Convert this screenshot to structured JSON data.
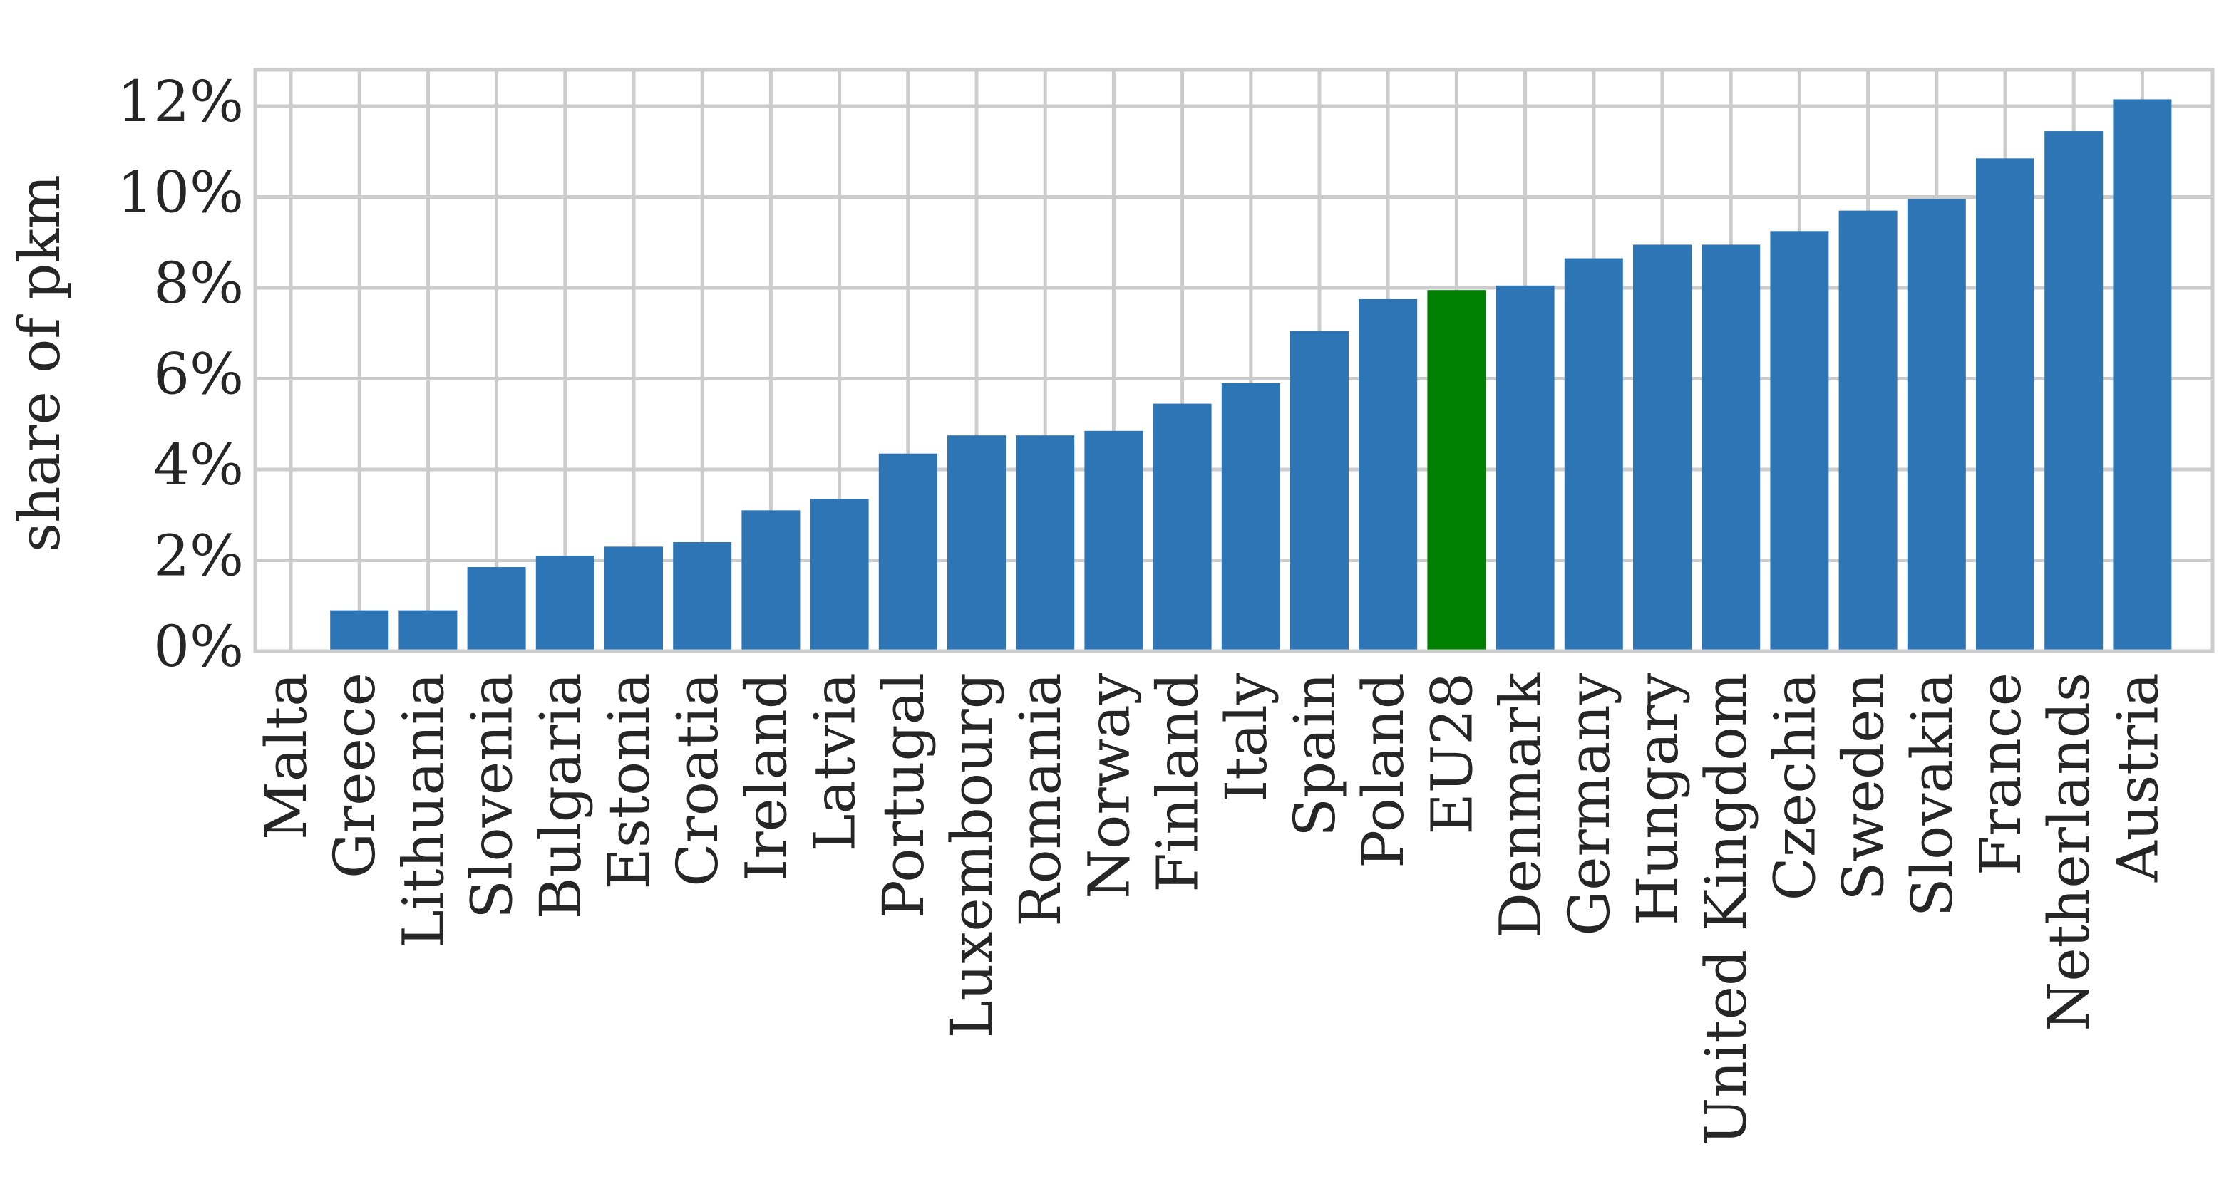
{
  "chart_data": {
    "type": "bar",
    "y_label": "share of pkm",
    "categories": [
      "Malta",
      "Greece",
      "Lithuania",
      "Slovenia",
      "Bulgaria",
      "Estonia",
      "Croatia",
      "Ireland",
      "Latvia",
      "Portugal",
      "Luxembourg",
      "Romania",
      "Norway",
      "Finland",
      "Italy",
      "Spain",
      "Poland",
      "EU28",
      "Denmark",
      "Germany",
      "Hungary",
      "United Kingdom",
      "Czechia",
      "Sweden",
      "Slovakia",
      "France",
      "Netherlands",
      "Austria"
    ],
    "values": [
      0,
      0.9,
      0.9,
      1.85,
      2.1,
      2.3,
      2.4,
      3.1,
      3.35,
      4.35,
      4.75,
      4.75,
      4.85,
      5.45,
      5.9,
      7.05,
      7.75,
      7.95,
      8.05,
      8.65,
      8.95,
      8.95,
      9.25,
      9.7,
      9.95,
      10.85,
      11.45,
      12.15
    ],
    "colors": [
      "#2e75b6",
      "#2e75b6",
      "#2e75b6",
      "#2e75b6",
      "#2e75b6",
      "#2e75b6",
      "#2e75b6",
      "#2e75b6",
      "#2e75b6",
      "#2e75b6",
      "#2e75b6",
      "#2e75b6",
      "#2e75b6",
      "#2e75b6",
      "#2e75b6",
      "#2e75b6",
      "#2e75b6",
      "#008000",
      "#2e75b6",
      "#2e75b6",
      "#2e75b6",
      "#2e75b6",
      "#2e75b6",
      "#2e75b6",
      "#2e75b6",
      "#2e75b6",
      "#2e75b6",
      "#2e75b6"
    ],
    "ylim": [
      0,
      12.8
    ],
    "yticks": [
      {
        "value": 0,
        "label": "0%"
      },
      {
        "value": 2,
        "label": "2%"
      },
      {
        "value": 4,
        "label": "4%"
      },
      {
        "value": 6,
        "label": "6%"
      },
      {
        "value": 8,
        "label": "8%"
      },
      {
        "value": 10,
        "label": "10%"
      },
      {
        "value": 12,
        "label": "12%"
      }
    ],
    "grid": true
  }
}
